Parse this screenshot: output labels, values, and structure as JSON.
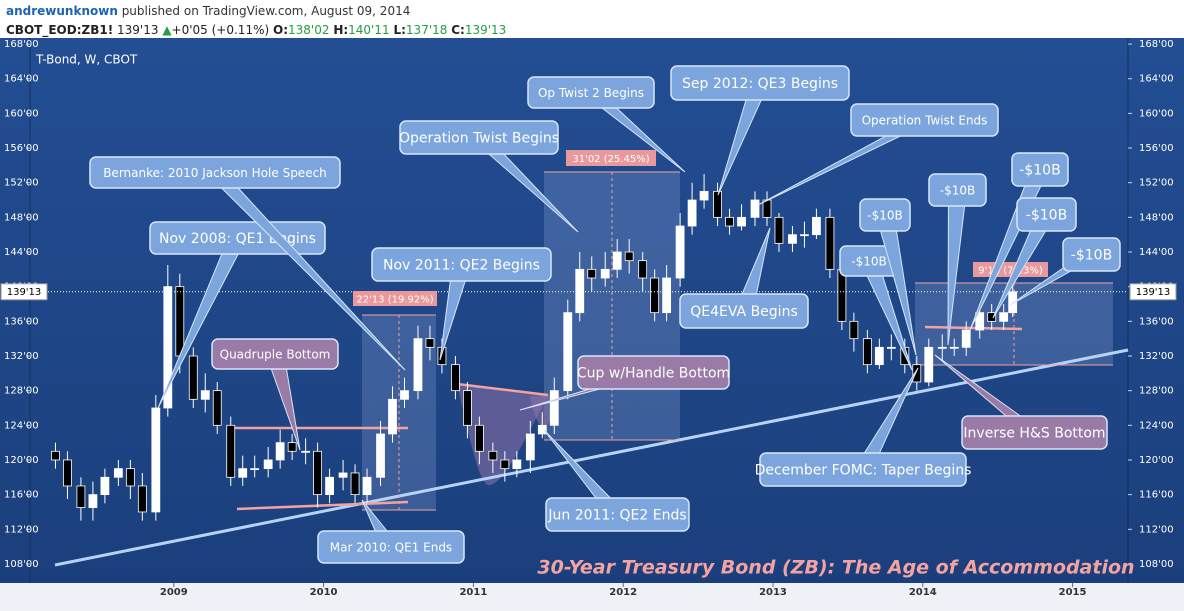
{
  "header": {
    "author": "andrewunknown",
    "published": "published on TradingView.com, August 09, 2014",
    "symbol": "CBOT_EOD:ZB1!",
    "price": "139'13",
    "change": "+0'05 (+0.11%)",
    "ohlc": [
      {
        "label": "O:",
        "value": "138'02"
      },
      {
        "label": "H:",
        "value": "140'11"
      },
      {
        "label": "L:",
        "value": "137'18"
      },
      {
        "label": "C:",
        "value": "139'13"
      }
    ]
  },
  "chart_data": {
    "type": "candlestick",
    "title": "T-Bond, W, CBOT",
    "subtitle": "30-Year Treasury Bond (ZB): The Age of Accommodation",
    "last_price_label": "139'13",
    "last_price": 139.41,
    "up_color": "#ffffff",
    "down_color": "#000000",
    "x": [
      2008.21,
      2008.29,
      2008.38,
      2008.46,
      2008.54,
      2008.63,
      2008.71,
      2008.79,
      2008.88,
      2008.96,
      2009.04,
      2009.13,
      2009.21,
      2009.29,
      2009.38,
      2009.46,
      2009.54,
      2009.63,
      2009.71,
      2009.79,
      2009.88,
      2009.96,
      2010.04,
      2010.13,
      2010.21,
      2010.29,
      2010.38,
      2010.46,
      2010.54,
      2010.63,
      2010.71,
      2010.79,
      2010.88,
      2010.96,
      2011.04,
      2011.13,
      2011.21,
      2011.29,
      2011.38,
      2011.46,
      2011.54,
      2011.63,
      2011.71,
      2011.79,
      2011.88,
      2011.96,
      2012.04,
      2012.13,
      2012.21,
      2012.29,
      2012.38,
      2012.46,
      2012.54,
      2012.63,
      2012.71,
      2012.79,
      2012.88,
      2012.96,
      2013.04,
      2013.13,
      2013.21,
      2013.29,
      2013.38,
      2013.46,
      2013.54,
      2013.63,
      2013.71,
      2013.79,
      2013.88,
      2013.96,
      2014.04,
      2014.13,
      2014.21,
      2014.29,
      2014.38,
      2014.46,
      2014.54,
      2014.6
    ],
    "open": [
      121,
      120,
      117,
      114.5,
      116,
      118,
      119,
      117,
      114,
      126,
      140,
      132,
      127,
      128,
      124,
      118,
      119,
      119,
      120,
      122,
      121,
      121,
      116,
      118,
      118.5,
      116,
      118,
      123,
      127,
      128,
      134,
      133,
      131,
      128,
      124,
      121,
      120,
      119,
      120,
      123,
      124,
      128,
      137,
      142,
      141,
      142,
      144,
      143,
      141,
      137,
      141,
      147,
      150,
      151,
      148,
      147,
      148,
      150,
      148,
      145,
      146,
      146,
      148,
      142,
      136,
      134,
      131,
      133,
      133,
      131,
      129,
      133,
      133,
      133,
      135,
      137,
      136,
      137
    ],
    "high": [
      122,
      121,
      118,
      117.5,
      119,
      120,
      120,
      118.5,
      127.5,
      142.5,
      141.5,
      133,
      130,
      129,
      125,
      120.5,
      120.5,
      121.5,
      123.5,
      123,
      122.5,
      122,
      119,
      120,
      119.5,
      119,
      124.5,
      128.5,
      129.5,
      135.5,
      135.5,
      134,
      132,
      129,
      125,
      122,
      121,
      121,
      124.5,
      125.5,
      129.5,
      138.5,
      144,
      143.5,
      144,
      145.5,
      145.5,
      144,
      142,
      142.5,
      148.5,
      152,
      153,
      152,
      149,
      149.5,
      151,
      151,
      148.5,
      147,
      147.5,
      149,
      149,
      142.5,
      137,
      135,
      134,
      134.5,
      134,
      132,
      134,
      134.5,
      134,
      136,
      138,
      138,
      138,
      140.34
    ],
    "low": [
      119,
      115.5,
      113,
      113,
      115,
      117,
      115.5,
      113,
      113,
      125,
      130,
      126,
      125.5,
      123,
      117,
      117,
      118,
      118,
      119,
      120,
      119.5,
      114.5,
      115,
      116.5,
      115,
      115,
      117,
      122,
      126,
      127,
      131.5,
      130,
      127,
      122.5,
      119.5,
      118.5,
      117.5,
      118,
      118.5,
      122.5,
      123,
      127,
      136,
      139.5,
      140,
      141,
      141.5,
      139.5,
      136,
      136,
      140,
      146,
      149,
      147,
      146,
      146.5,
      147,
      147,
      144,
      144,
      144.5,
      145.5,
      141,
      135,
      132.5,
      130,
      130.5,
      131.5,
      130,
      128,
      128.5,
      131.5,
      132,
      132,
      134,
      135,
      135,
      136.5
    ],
    "close": [
      120,
      117,
      114.5,
      116,
      118,
      119,
      117,
      114,
      126,
      140,
      132,
      127,
      128,
      124,
      118,
      119,
      119,
      120,
      122,
      121,
      121,
      116,
      118,
      118.5,
      116,
      118,
      123,
      127,
      128,
      134,
      133,
      131,
      128,
      124,
      121,
      120,
      119,
      120,
      123,
      124,
      128,
      137,
      142,
      141,
      142,
      144,
      143,
      141,
      137,
      141,
      147,
      150,
      151,
      148,
      147,
      148,
      150,
      148,
      145,
      146,
      146,
      148,
      142,
      136,
      134,
      131,
      133,
      133,
      131,
      129,
      133,
      133,
      133,
      135,
      137,
      136,
      137,
      139.41
    ],
    "xlim": [
      2008.04,
      2015.37
    ],
    "xticks": [
      2009,
      2010,
      2011,
      2012,
      2013,
      2014,
      2015
    ],
    "ylim": [
      105.8,
      168.7
    ],
    "yticks": [
      {
        "value": 108,
        "label": "108'00"
      },
      {
        "value": 112,
        "label": "112'00"
      },
      {
        "value": 116,
        "label": "116'00"
      },
      {
        "value": 120,
        "label": "120'00"
      },
      {
        "value": 124,
        "label": "124'00"
      },
      {
        "value": 128,
        "label": "128'00"
      },
      {
        "value": 132,
        "label": "132'00"
      },
      {
        "value": 136,
        "label": "136'00"
      },
      {
        "value": 140,
        "label": "140'00"
      },
      {
        "value": 144,
        "label": "144'00"
      },
      {
        "value": 148,
        "label": "148'00"
      },
      {
        "value": 152,
        "label": "152'00"
      },
      {
        "value": 156,
        "label": "156'00"
      },
      {
        "value": 160,
        "label": "160'00"
      },
      {
        "value": 164,
        "label": "164'00"
      },
      {
        "value": 168,
        "label": "168'00"
      }
    ],
    "annotations": [
      "Nov 2008: QE1 Begins",
      "Bernanke: 2010 Jackson Hole Speech",
      "Operation Twist Begins",
      "Op Twist 2 Begins",
      "Sep 2012: QE3 Begins",
      "Operation Twist Ends",
      "Nov 2011: QE2 Begins",
      "QE4EVA Begins",
      "Quadruple Bottom",
      "Cup w/Handle Bottom",
      "Mar 2010: QE1 Ends",
      "Jun 2011: QE2 Ends",
      "December FOMC: Taper Begins",
      "Inverse H&S Bottom",
      "-$10B",
      "-$10B",
      "-$10B",
      "-$10B",
      "-$10B",
      "-$10B"
    ],
    "measures": [
      "22'13 (19.92%)",
      "31'02 (25.45%)",
      "9'11 (7.13%)"
    ]
  }
}
